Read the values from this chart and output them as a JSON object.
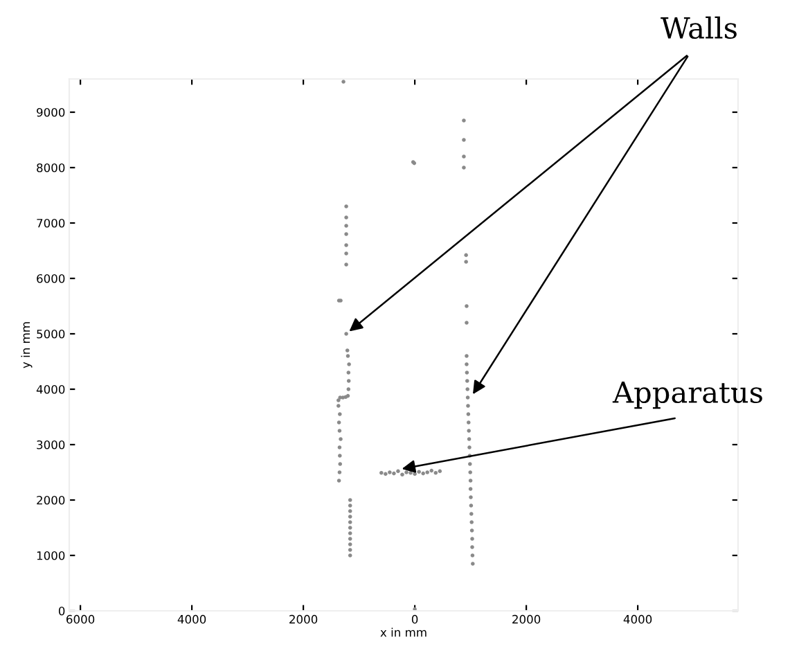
{
  "chart_data": {
    "type": "scatter",
    "xlabel": "x in mm",
    "ylabel": "y in mm",
    "marker": "circle",
    "grid": false,
    "legend": false,
    "xlim": [
      -6200,
      5800
    ],
    "ylim": [
      0,
      9600
    ],
    "xticks": [
      {
        "value": -6000,
        "label": "6000"
      },
      {
        "value": -4000,
        "label": "4000"
      },
      {
        "value": -2000,
        "label": "2000"
      },
      0,
      2000,
      4000
    ],
    "yticks": [
      0,
      1000,
      2000,
      3000,
      4000,
      5000,
      6000,
      7000,
      8000,
      9000
    ],
    "series": [
      {
        "color": "#8a8a8a",
        "x": [
          -1160,
          -1160,
          -1160,
          -1160,
          -1160,
          -1160,
          -1160,
          -1160,
          -1160,
          -1160,
          -1160,
          -1360,
          -1350,
          -1340,
          -1345,
          -1350,
          -1330,
          -1350,
          -1360,
          -1345,
          -1370,
          -1370,
          -1340,
          -1290,
          -1240,
          -1200,
          -1190,
          -1185,
          -1190,
          -1180,
          -1200,
          -1210,
          -1230,
          -1360,
          -1330,
          -1230,
          -1230,
          -1230,
          -1230,
          -1230,
          -1230,
          -1230,
          -1280,
          1040,
          1035,
          1030,
          1030,
          1025,
          1020,
          1015,
          1010,
          1005,
          1000,
          1000,
          995,
          990,
          985,
          980,
          975,
          970,
          965,
          960,
          955,
          950,
          945,
          940,
          935,
          930,
          930,
          930,
          930,
          920,
          920,
          880,
          880,
          880,
          880,
          -30,
          -10,
          0,
          -600,
          -525,
          -450,
          -375,
          -300,
          -225,
          -150,
          -75,
          0,
          75,
          150,
          225,
          300,
          375,
          450
        ],
        "values": [
          1000,
          1100,
          1200,
          1300,
          1400,
          1500,
          1600,
          1700,
          1800,
          1900,
          2000,
          2350,
          2500,
          2650,
          2800,
          2950,
          3100,
          3250,
          3400,
          3550,
          3700,
          3800,
          3850,
          3850,
          3860,
          3880,
          4000,
          4150,
          4300,
          4450,
          4600,
          4700,
          5000,
          5600,
          5600,
          6250,
          6450,
          6600,
          6800,
          6950,
          7100,
          7300,
          9550,
          850,
          1000,
          1150,
          1300,
          1450,
          1600,
          1750,
          1900,
          2050,
          2200,
          2350,
          2500,
          2650,
          2800,
          2950,
          3100,
          3250,
          3400,
          3550,
          3700,
          3850,
          4000,
          4150,
          4300,
          4450,
          4600,
          5200,
          5500,
          6300,
          6420,
          8000,
          8200,
          8500,
          8850,
          8100,
          8080,
          30,
          2490,
          2470,
          2500,
          2480,
          2520,
          2460,
          2500,
          2490,
          2470,
          2510,
          2480,
          2500,
          2530,
          2490,
          2520
        ]
      }
    ],
    "annotations": [
      {
        "text": "Walls",
        "x": -1230,
        "y": 5000
      },
      {
        "text": "Apparatus",
        "x": -300,
        "y": 2550
      }
    ]
  }
}
